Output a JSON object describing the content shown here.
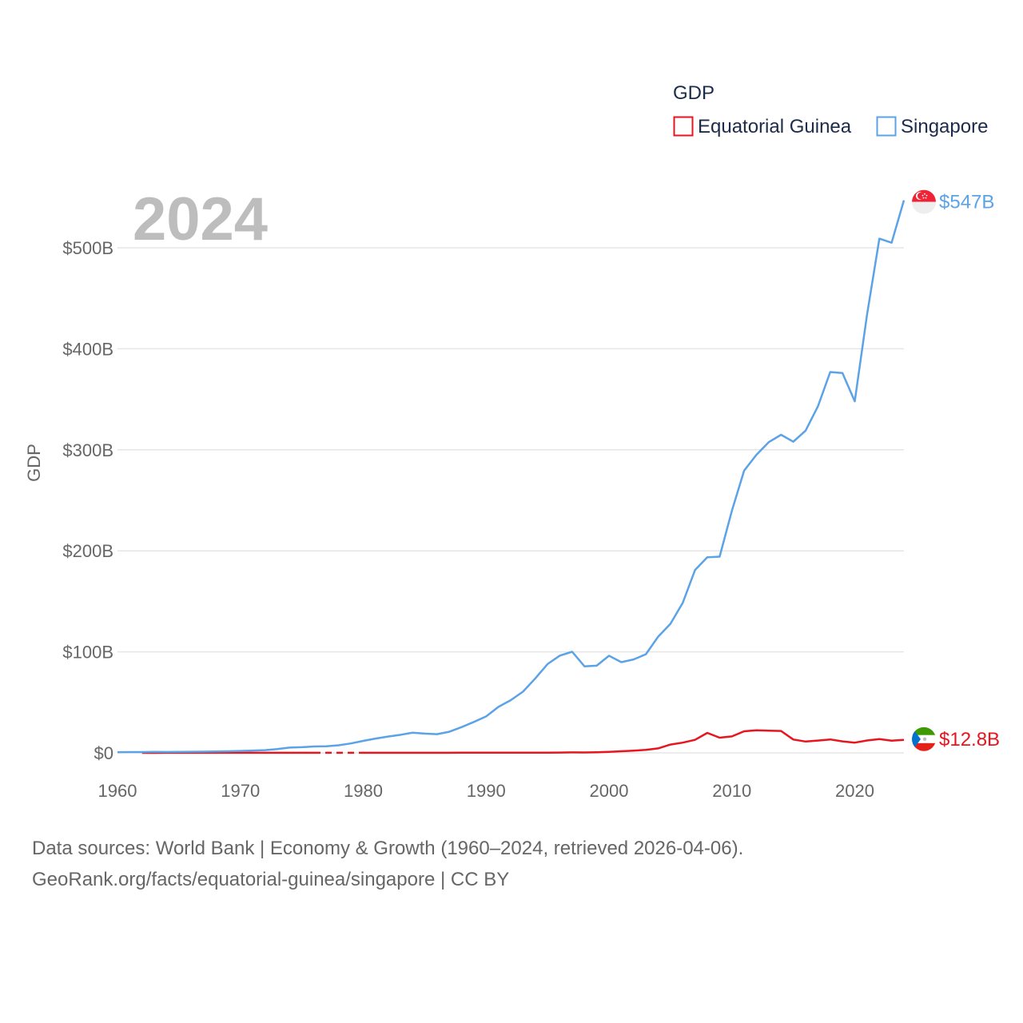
{
  "chart_data": {
    "type": "line",
    "title": "GDP",
    "current_year_label": "2024",
    "ylabel": "GDP",
    "xlabel": "",
    "xlim": [
      1960,
      2024
    ],
    "ylim": [
      0,
      560
    ],
    "y_unit": "billion USD",
    "y_ticks": [
      {
        "value": 0,
        "label": "$0"
      },
      {
        "value": 100,
        "label": "$100B"
      },
      {
        "value": 200,
        "label": "$200B"
      },
      {
        "value": 300,
        "label": "$300B"
      },
      {
        "value": 400,
        "label": "$400B"
      },
      {
        "value": 500,
        "label": "$500B"
      }
    ],
    "x_ticks": [
      1960,
      1970,
      1980,
      1990,
      2000,
      2010,
      2020
    ],
    "legend_title": "GDP",
    "series": [
      {
        "name": "Equatorial Guinea",
        "color": "#e8141e",
        "end_label": "$12.8B",
        "flag": "equatorial-guinea-flag",
        "gap_years": [
          1977,
          1978,
          1979
        ],
        "x": [
          1962,
          1963,
          1964,
          1965,
          1966,
          1967,
          1968,
          1969,
          1970,
          1971,
          1972,
          1973,
          1974,
          1975,
          1976,
          1977,
          1978,
          1979,
          1980,
          1981,
          1982,
          1983,
          1984,
          1985,
          1986,
          1987,
          1988,
          1989,
          1990,
          1991,
          1992,
          1993,
          1994,
          1995,
          1996,
          1997,
          1998,
          1999,
          2000,
          2001,
          2002,
          2003,
          2004,
          2005,
          2006,
          2007,
          2008,
          2009,
          2010,
          2011,
          2012,
          2013,
          2014,
          2015,
          2016,
          2017,
          2018,
          2019,
          2020,
          2021,
          2022,
          2023,
          2024
        ],
        "values": [
          0.03,
          0.03,
          0.04,
          0.05,
          0.05,
          0.06,
          0.07,
          0.07,
          0.07,
          0.07,
          0.08,
          0.09,
          0.1,
          0.1,
          0.1,
          0.1,
          0.1,
          0.1,
          0.1,
          0.1,
          0.1,
          0.1,
          0.1,
          0.1,
          0.1,
          0.11,
          0.12,
          0.13,
          0.13,
          0.15,
          0.16,
          0.16,
          0.14,
          0.16,
          0.28,
          0.5,
          0.37,
          0.62,
          1.05,
          1.6,
          2.1,
          2.9,
          4.4,
          8.2,
          10.1,
          12.9,
          19.8,
          15.0,
          16.3,
          21.4,
          22.4,
          22.0,
          21.7,
          13.2,
          11.2,
          12.2,
          13.3,
          11.4,
          10.1,
          12.3,
          13.7,
          12.1,
          12.8
        ]
      },
      {
        "name": "Singapore",
        "color": "#5ba3e6",
        "end_label": "$547B",
        "flag": "singapore-flag",
        "gap_years": [],
        "x": [
          1960,
          1961,
          1962,
          1963,
          1964,
          1965,
          1966,
          1967,
          1968,
          1969,
          1970,
          1971,
          1972,
          1973,
          1974,
          1975,
          1976,
          1977,
          1978,
          1979,
          1980,
          1981,
          1982,
          1983,
          1984,
          1985,
          1986,
          1987,
          1988,
          1989,
          1990,
          1991,
          1992,
          1993,
          1994,
          1995,
          1996,
          1997,
          1998,
          1999,
          2000,
          2001,
          2002,
          2003,
          2004,
          2005,
          2006,
          2007,
          2008,
          2009,
          2010,
          2011,
          2012,
          2013,
          2014,
          2015,
          2016,
          2017,
          2018,
          2019,
          2020,
          2021,
          2022,
          2023,
          2024
        ],
        "values": [
          0.7,
          0.76,
          0.83,
          0.92,
          0.89,
          0.97,
          1.1,
          1.2,
          1.4,
          1.6,
          1.9,
          2.3,
          2.7,
          3.7,
          5.2,
          5.6,
          6.3,
          6.6,
          7.5,
          9.3,
          11.9,
          14.2,
          16.1,
          17.8,
          19.9,
          19.1,
          18.5,
          20.9,
          25.5,
          30.6,
          36.1,
          45.5,
          52.1,
          60.6,
          73.7,
          87.9,
          96.3,
          100.1,
          85.7,
          86.3,
          96.1,
          89.8,
          92.5,
          97.6,
          115.0,
          127.8,
          148.6,
          180.9,
          193.6,
          194.2,
          239.8,
          279.4,
          295.1,
          307.6,
          314.9,
          308.0,
          319.0,
          343.0,
          377.0,
          376.0,
          348.0,
          434.0,
          509.0,
          505.0,
          547.0
        ]
      }
    ]
  },
  "footer": {
    "line1": "Data sources: World Bank | Economy & Growth (1960–2024, retrieved 2026-04-06).",
    "line2": "GeoRank.org/facts/equatorial-guinea/singapore | CC BY"
  }
}
